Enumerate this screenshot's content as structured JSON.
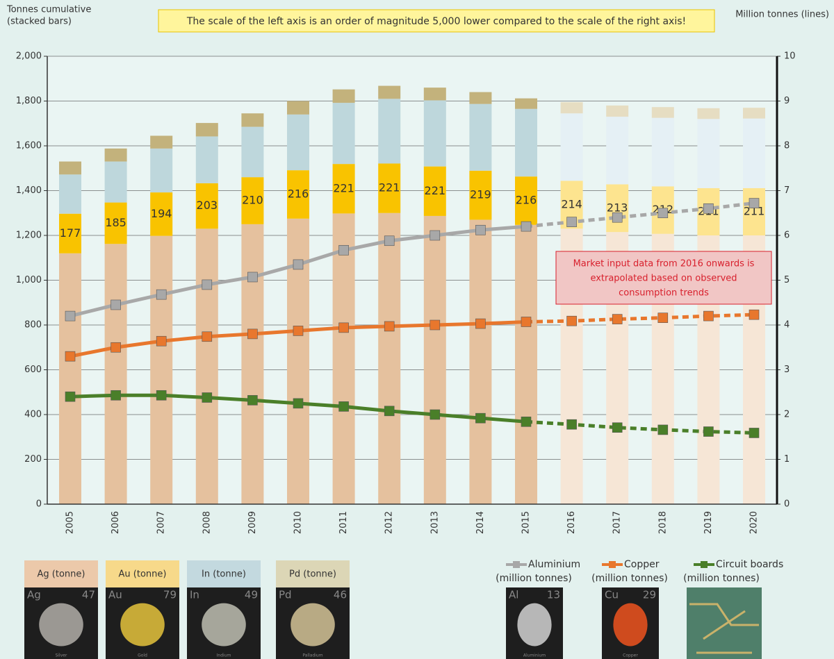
{
  "chart_data": {
    "type": "bar-line",
    "notice": "The scale of the left axis is an order of magnitude 5,000 lower compared to the scale of the right axis!",
    "y_label": [
      "Tonnes cumulative",
      "(stacked bars)"
    ],
    "y2_label": "Million tonnes (lines)",
    "note": [
      "Market input data from 2016 onwards  is",
      "extrapolated based on observed",
      "consumption trends"
    ],
    "categories": [
      "2005",
      "2006",
      "2007",
      "2008",
      "2009",
      "2010",
      "2011",
      "2012",
      "2013",
      "2014",
      "2015",
      "2016",
      "2017",
      "2018",
      "2019",
      "2020"
    ],
    "projected": [
      false,
      false,
      false,
      false,
      false,
      false,
      false,
      false,
      false,
      false,
      false,
      true,
      true,
      true,
      true,
      true
    ],
    "ylim": [
      0,
      2000
    ],
    "yticks": [
      0,
      200,
      400,
      600,
      800,
      {
        "value": 1000,
        "label": "1,000"
      },
      {
        "value": 1200,
        "label": "1,200"
      },
      {
        "value": 1400,
        "label": "1,400"
      },
      {
        "value": 1600,
        "label": "1,600"
      },
      {
        "value": 1800,
        "label": "1,800"
      },
      {
        "value": 2000,
        "label": "2,000"
      }
    ],
    "y2lim": [
      0,
      10
    ],
    "y2ticks": [
      0,
      1,
      2,
      3,
      4,
      5,
      6,
      7,
      8,
      9,
      10
    ],
    "grid": true,
    "bar_series": [
      {
        "name": "Ag (tonne)",
        "color": "#e5c19e",
        "projected_color": "#f6e6d6",
        "header_color": "#ecc9aa",
        "tile": {
          "symbol": "Ag",
          "number": "47",
          "element": "Silver",
          "color": "#a9a5a0"
        },
        "values": [
          1120,
          1162,
          1198,
          1230,
          1250,
          1275,
          1298,
          1300,
          1287,
          1270,
          1247,
          1230,
          1215,
          1207,
          1200,
          1200
        ]
      },
      {
        "name": "Au (tonne)",
        "color": "#f9c300",
        "projected_color": "#fde48f",
        "header_color": "#f7d98a",
        "tile": {
          "symbol": "Au",
          "number": "79",
          "element": "Gold",
          "color": "#d9b93a"
        },
        "values": [
          177,
          185,
          194,
          203,
          210,
          216,
          221,
          221,
          221,
          219,
          216,
          214,
          213,
          212,
          211,
          211
        ]
      },
      {
        "name": "In (tonne)",
        "color": "#bed7dc",
        "projected_color": "#e5f0f5",
        "header_color": "#c3d9df",
        "tile": {
          "symbol": "In",
          "number": "49",
          "element": "Indium",
          "color": "#b5b5a8"
        },
        "values": [
          175,
          183,
          196,
          209,
          225,
          249,
          273,
          289,
          295,
          298,
          302,
          301,
          302,
          306,
          309,
          311
        ]
      },
      {
        "name": "Pd (tonne)",
        "color": "#c3b27c",
        "projected_color": "#e6ddc2",
        "header_color": "#dcd6b6",
        "tile": {
          "symbol": "Pd",
          "number": "46",
          "element": "Palladium",
          "color": "#c9b98f"
        },
        "values": [
          58,
          58,
          57,
          60,
          60,
          60,
          60,
          58,
          57,
          53,
          47,
          50,
          50,
          48,
          48,
          48
        ]
      }
    ],
    "line_series": [
      {
        "name": "Aluminium",
        "sublabel": "(million tonnes)",
        "color": "#a8a8a8",
        "axis": "y2",
        "tile": {
          "symbol": "Al",
          "number": "13",
          "element": "Aluminium",
          "color": "#c8c8c8"
        },
        "values": [
          4.2,
          4.45,
          4.68,
          4.9,
          5.07,
          5.35,
          5.67,
          5.88,
          6.0,
          6.12,
          6.2,
          6.3,
          6.4,
          6.5,
          6.6,
          6.72
        ]
      },
      {
        "name": "Copper",
        "sublabel": "(million tonnes)",
        "color": "#e8772d",
        "axis": "y2",
        "tile": {
          "symbol": "Cu",
          "number": "29",
          "element": "Copper",
          "color": "#e2501e"
        },
        "values": [
          3.3,
          3.5,
          3.64,
          3.74,
          3.8,
          3.87,
          3.94,
          3.97,
          4.0,
          4.03,
          4.07,
          4.09,
          4.13,
          4.16,
          4.2,
          4.23
        ]
      },
      {
        "name": "Circuit boards",
        "sublabel": "(million tonnes)",
        "color": "#4a7f29",
        "axis": "y2",
        "values": [
          2.4,
          2.43,
          2.43,
          2.38,
          2.32,
          2.25,
          2.18,
          2.08,
          2.0,
          1.92,
          1.84,
          1.78,
          1.71,
          1.66,
          1.62,
          1.59
        ]
      }
    ],
    "label_series": 1
  }
}
